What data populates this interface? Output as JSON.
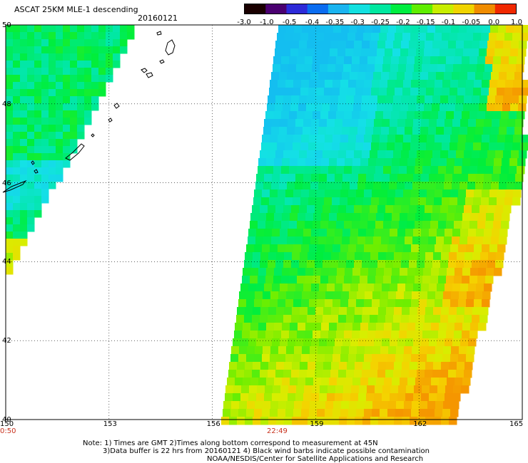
{
  "header": {
    "title": "ASCAT 25KM MLE-1 descending",
    "date": "20160121"
  },
  "colorbar": {
    "labels": [
      "-3.0",
      "-1.0",
      "-0.5",
      "-0.4",
      "-0.35",
      "-0.3",
      "-0.25",
      "-0.2",
      "-0.15",
      "-0.1",
      "-0.05",
      "0.0",
      "1.0"
    ],
    "colors": [
      "#1a0000",
      "#4a0070",
      "#2d2ad8",
      "#0a6cf0",
      "#1ab4f0",
      "#12e0e0",
      "#00e8a0",
      "#00ee40",
      "#60ee00",
      "#c8ee00",
      "#f0d400",
      "#f08c00",
      "#f02800"
    ]
  },
  "axes": {
    "lon_ticks": [
      "150",
      "153",
      "156",
      "159",
      "162",
      "165"
    ],
    "lat_ticks": [
      "50",
      "48",
      "46",
      "44",
      "42",
      "40"
    ],
    "lon_range": [
      150,
      165
    ],
    "lat_range": [
      40,
      50
    ]
  },
  "pass_times": [
    "0:50",
    "22:49"
  ],
  "notes": {
    "line1": "Note: 1) Times are GMT 2)Times along bottom correspond to measurement at 45N",
    "line2": "3)Data buffer is 22 hrs from 20160121 4) Black wind barbs indicate possible contamination",
    "line3": "NOAA/NESDIS/Center for Satellite Applications and Research"
  }
}
